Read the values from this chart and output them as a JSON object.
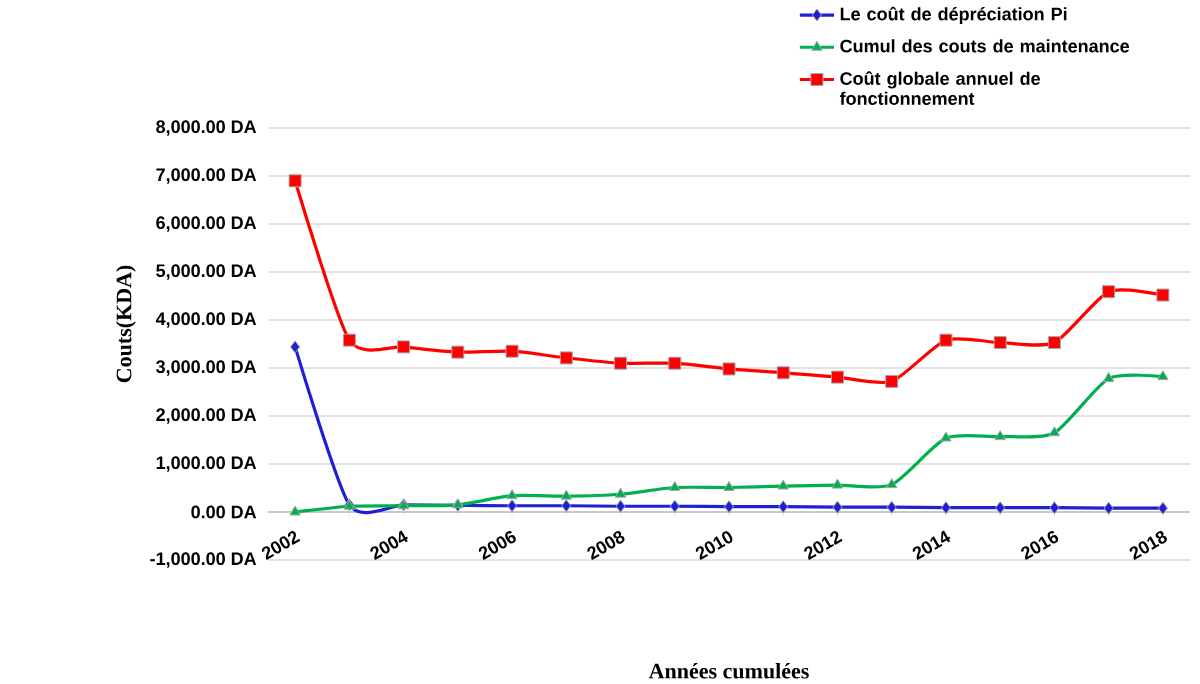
{
  "chart_data": {
    "type": "line",
    "xlabel": "Années cumulées",
    "ylabel": "Couts(KDA)",
    "categories": [
      "2002",
      null,
      "2004",
      null,
      "2006",
      null,
      "2008",
      null,
      "2010",
      null,
      "2012",
      null,
      "2014",
      null,
      "2016",
      null,
      "2018"
    ],
    "ylim": [
      -1000,
      8000
    ],
    "yticks": [
      {
        "value": -1000,
        "label": "-1,000.00 DA"
      },
      {
        "value": 0,
        "label": "0.00 DA"
      },
      {
        "value": 1000,
        "label": "1,000.00 DA"
      },
      {
        "value": 2000,
        "label": "2,000.00 DA"
      },
      {
        "value": 3000,
        "label": "3,000.00 DA"
      },
      {
        "value": 4000,
        "label": "4,000.00 DA"
      },
      {
        "value": 5000,
        "label": "5,000.00 DA"
      },
      {
        "value": 6000,
        "label": "6,000.00 DA"
      },
      {
        "value": 7000,
        "label": "7,000.00 DA"
      },
      {
        "value": 8000,
        "label": "8,000.00 DA"
      }
    ],
    "grid": "y",
    "legend": "top right",
    "series": [
      {
        "name": "Le coût de  dépréciation   Pi",
        "color": "#1f1fd6",
        "marker": "diamond",
        "values": [
          3440,
          150,
          150,
          140,
          130,
          130,
          120,
          120,
          110,
          110,
          100,
          100,
          90,
          90,
          90,
          80,
          80
        ]
      },
      {
        "name": "Cumul des couts de maintenance",
        "color": "#00b050",
        "marker": "triangle",
        "values": [
          0,
          120,
          130,
          150,
          340,
          330,
          370,
          510,
          510,
          540,
          560,
          570,
          1540,
          1570,
          1650,
          2780,
          2820
        ]
      },
      {
        "name": "Coût globale  annuel de fonctionnement",
        "color": "#ff0000",
        "marker": "square",
        "values": [
          6900,
          3580,
          3440,
          3330,
          3350,
          3210,
          3100,
          3100,
          2980,
          2900,
          2810,
          2720,
          3580,
          3530,
          3530,
          4590,
          4520
        ]
      }
    ]
  }
}
